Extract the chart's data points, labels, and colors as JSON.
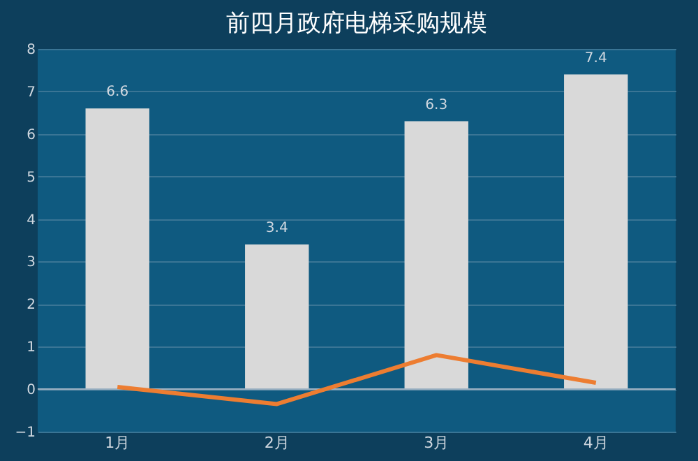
{
  "chart_data": {
    "type": "bar",
    "title": "前四月政府电梯采购规模",
    "categories": [
      "1月",
      "2月",
      "3月",
      "4月"
    ],
    "series": [
      {
        "color": "#d9d9d9",
        "values": [
          6.6,
          3.4,
          6.3,
          7.4
        ],
        "value_labels": [
          "6.6",
          "3.4",
          "6.3",
          "7.4"
        ]
      },
      {
        "type": "line",
        "color": "#ed7d31",
        "values": [
          0.05,
          -0.35,
          0.8,
          0.15
        ]
      }
    ],
    "ylim": [
      -1,
      8
    ],
    "yticks": [
      -1,
      0,
      1,
      2,
      3,
      4,
      5,
      6,
      7,
      8
    ],
    "grid": "y",
    "marker": "none",
    "line_style": "solid"
  }
}
